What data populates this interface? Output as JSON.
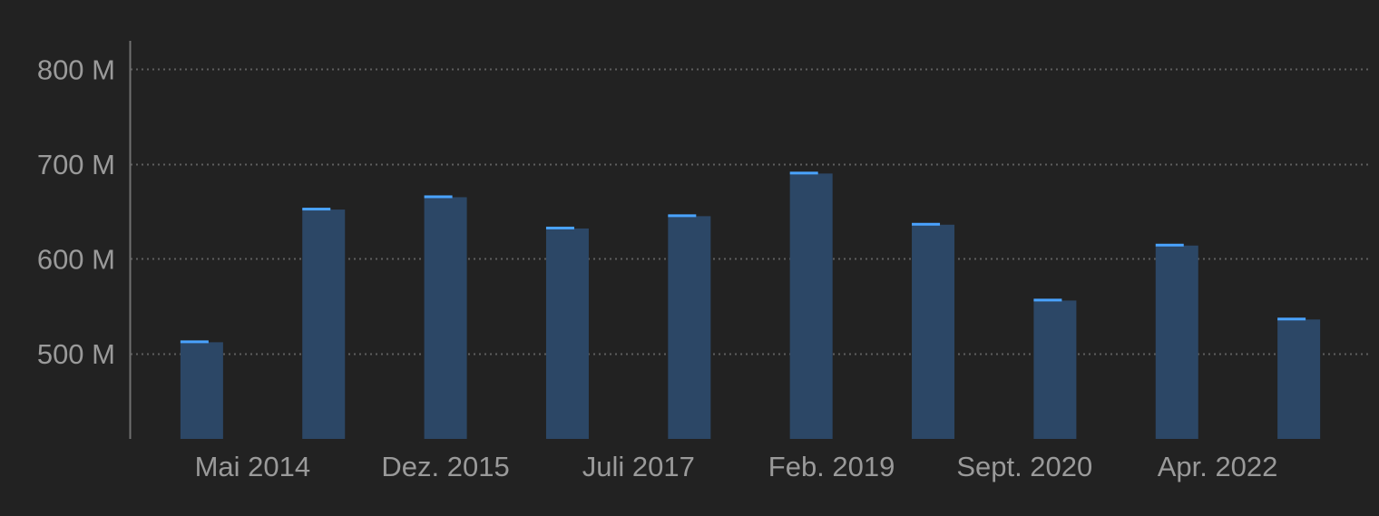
{
  "chart_data": {
    "type": "bar",
    "x": [
      "2013-12",
      "2014-12",
      "2015-12",
      "2016-12",
      "2017-12",
      "2018-12",
      "2019-12",
      "2020-12",
      "2021-12",
      "2022-12"
    ],
    "values": [
      512000000,
      652000000,
      665000000,
      632000000,
      645000000,
      690000000,
      636000000,
      556000000,
      614000000,
      536000000
    ],
    "y_ticks": [
      {
        "value": 500000000,
        "label": "500 M"
      },
      {
        "value": 600000000,
        "label": "600 M"
      },
      {
        "value": 700000000,
        "label": "700 M"
      },
      {
        "value": 800000000,
        "label": "800 M"
      }
    ],
    "x_ticks": [
      {
        "date": "2014-05",
        "label": "Mai 2014"
      },
      {
        "date": "2015-12",
        "label": "Dez. 2015"
      },
      {
        "date": "2017-07",
        "label": "Juli 2017"
      },
      {
        "date": "2019-02",
        "label": "Feb. 2019"
      },
      {
        "date": "2020-09",
        "label": "Sept. 2020"
      },
      {
        "date": "2022-04",
        "label": "Apr. 2022"
      }
    ],
    "ylim": [
      410000000,
      830000000
    ],
    "xlim": [
      "2013-05",
      "2023-07"
    ],
    "grid": "horizontal dotted",
    "legend": "none",
    "title": "",
    "xlabel": "",
    "ylabel": ""
  },
  "colors": {
    "background": "#222222",
    "bar_fill": "#2c4766",
    "bar_cap": "#4aa3ff",
    "grid": "#5e5e5e",
    "axis": "#707070",
    "tick_text": "#9a9a9a"
  }
}
